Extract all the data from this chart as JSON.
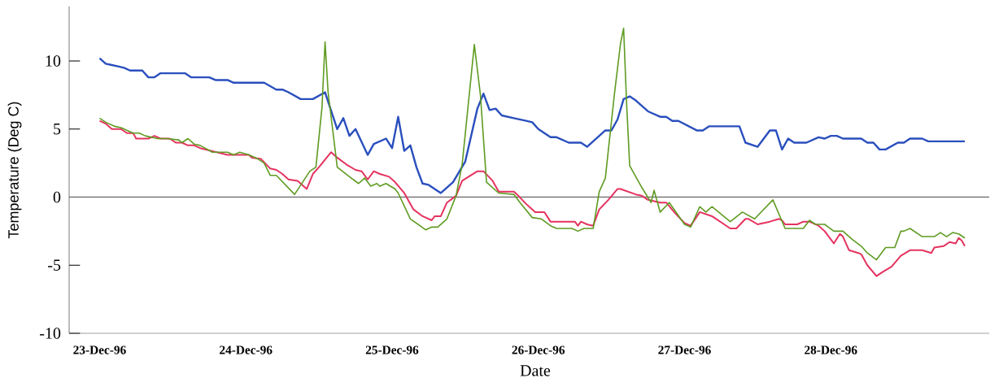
{
  "chart_data": {
    "type": "line",
    "xlabel": "Date",
    "ylabel": "Temperature (Deg C)",
    "xlim": [
      "1996-12-22T19:00",
      "1996-12-29T02:00"
    ],
    "ylim": [
      -10,
      14
    ],
    "xticks": [
      {
        "value": "1996-12-23",
        "label": "23-Dec-96"
      },
      {
        "value": "1996-12-24",
        "label": "24-Dec-96"
      },
      {
        "value": "1996-12-25",
        "label": "25-Dec-96"
      },
      {
        "value": "1996-12-26",
        "label": "26-Dec-96"
      },
      {
        "value": "1996-12-27",
        "label": "27-Dec-96"
      },
      {
        "value": "1996-12-28",
        "label": "28-Dec-96"
      }
    ],
    "yticks": [
      -10,
      -5,
      0,
      5,
      10
    ],
    "ref_lines": [
      {
        "axis": "y",
        "value": 0,
        "color": "#707070"
      }
    ],
    "series": [
      {
        "color": "#2a4fbd",
        "x": [
          "1996-12-23T00:00",
          "1996-12-23T01:00",
          "1996-12-23T02:00",
          "1996-12-23T03:00",
          "1996-12-23T04:00",
          "1996-12-23T05:00",
          "1996-12-23T07:00",
          "1996-12-23T08:00",
          "1996-12-23T09:00",
          "1996-12-23T10:00",
          "1996-12-23T14:00",
          "1996-12-23T15:00",
          "1996-12-23T18:00",
          "1996-12-23T19:00",
          "1996-12-23T21:00",
          "1996-12-23T22:00",
          "1996-12-24T03:00",
          "1996-12-24T05:00",
          "1996-12-24T06:00",
          "1996-12-24T07:00",
          "1996-12-24T09:00",
          "1996-12-24T11:00",
          "1996-12-24T13:00",
          "1996-12-24T15:00",
          "1996-12-24T16:00",
          "1996-12-24T17:00",
          "1996-12-24T18:00",
          "1996-12-24T20:00",
          "1996-12-24T21:00",
          "1996-12-24T23:00",
          "1996-12-25T00:00",
          "1996-12-25T01:00",
          "1996-12-25T02:00",
          "1996-12-25T03:00",
          "1996-12-25T04:00",
          "1996-12-25T05:00",
          "1996-12-25T06:00",
          "1996-12-25T08:00",
          "1996-12-25T10:00",
          "1996-12-25T12:00",
          "1996-12-25T14:00",
          "1996-12-25T15:00",
          "1996-12-25T16:00",
          "1996-12-25T17:00",
          "1996-12-25T18:00",
          "1996-12-25T20:00",
          "1996-12-25T22:00",
          "1996-12-25T23:00",
          "1996-12-26T00:00",
          "1996-12-26T02:00",
          "1996-12-26T03:00",
          "1996-12-26T05:00",
          "1996-12-26T07:00",
          "1996-12-26T08:00",
          "1996-12-26T09:00",
          "1996-12-26T11:00",
          "1996-12-26T12:00",
          "1996-12-26T13:00",
          "1996-12-26T14:00",
          "1996-12-26T15:00",
          "1996-12-26T16:00",
          "1996-12-26T18:00",
          "1996-12-26T20:00",
          "1996-12-26T21:00",
          "1996-12-26T22:00",
          "1996-12-26T23:00",
          "1996-12-27T02:00",
          "1996-12-27T03:00",
          "1996-12-27T04:00",
          "1996-12-27T09:00",
          "1996-12-27T10:00",
          "1996-12-27T12:00",
          "1996-12-27T14:00",
          "1996-12-27T15:00",
          "1996-12-27T16:00",
          "1996-12-27T17:00",
          "1996-12-27T18:00",
          "1996-12-27T20:00",
          "1996-12-27T22:00",
          "1996-12-27T23:00",
          "1996-12-28T00:00",
          "1996-12-28T01:00",
          "1996-12-28T02:00",
          "1996-12-28T05:00",
          "1996-12-28T06:00",
          "1996-12-28T07:00",
          "1996-12-28T08:00",
          "1996-12-28T09:00",
          "1996-12-28T11:00",
          "1996-12-28T12:00",
          "1996-12-28T13:00",
          "1996-12-28T15:00",
          "1996-12-28T16:00",
          "1996-12-28T22:00"
        ],
        "values": [
          10.2,
          9.8,
          9.7,
          9.6,
          9.5,
          9.3,
          9.3,
          8.8,
          8.8,
          9.1,
          9.1,
          8.8,
          8.8,
          8.6,
          8.6,
          8.4,
          8.4,
          7.9,
          7.9,
          7.7,
          7.2,
          7.2,
          7.7,
          5.0,
          5.8,
          4.5,
          5.0,
          3.1,
          3.9,
          4.3,
          3.6,
          5.9,
          3.4,
          3.8,
          2.2,
          1.0,
          0.9,
          0.3,
          1.1,
          2.6,
          6.5,
          7.6,
          6.4,
          6.5,
          6.0,
          5.8,
          5.6,
          5.5,
          5.0,
          4.4,
          4.4,
          4.0,
          4.0,
          3.7,
          4.1,
          4.9,
          4.9,
          5.7,
          7.2,
          7.4,
          7.1,
          6.3,
          5.9,
          5.9,
          5.6,
          5.6,
          4.9,
          4.9,
          5.2,
          5.2,
          4.0,
          3.7,
          4.9,
          4.9,
          3.5,
          4.3,
          4.0,
          4.0,
          4.4,
          4.3,
          4.5,
          4.5,
          4.3,
          4.3,
          4.0,
          4.0,
          3.5,
          3.5,
          4.0,
          4.0,
          4.3,
          4.3,
          4.1,
          4.1
        ]
      },
      {
        "color": "#e4335f",
        "x": [
          "1996-12-23T00:00",
          "1996-12-23T01:00",
          "1996-12-23T02:00",
          "1996-12-23T03:30",
          "1996-12-23T04:30",
          "1996-12-23T05:30",
          "1996-12-23T06:00",
          "1996-12-23T08:00",
          "1996-12-23T09:00",
          "1996-12-23T10:00",
          "1996-12-23T11:30",
          "1996-12-23T12:30",
          "1996-12-23T13:30",
          "1996-12-23T14:30",
          "1996-12-23T15:30",
          "1996-12-23T16:30",
          "1996-12-23T21:00",
          "1996-12-24T00:30",
          "1996-12-24T01:00",
          "1996-12-24T02:30",
          "1996-12-24T04:00",
          "1996-12-24T05:00",
          "1996-12-24T06:00",
          "1996-12-24T07:00",
          "1996-12-24T08:30",
          "1996-12-24T10:00",
          "1996-12-24T11:00",
          "1996-12-24T12:00",
          "1996-12-24T14:00",
          "1996-12-24T15:00",
          "1996-12-24T16:30",
          "1996-12-24T18:00",
          "1996-12-24T19:00",
          "1996-12-24T20:00",
          "1996-12-24T21:00",
          "1996-12-24T22:00",
          "1996-12-24T23:30",
          "1996-12-25T00:30",
          "1996-12-25T02:00",
          "1996-12-25T03:30",
          "1996-12-25T05:00",
          "1996-12-25T06:30",
          "1996-12-25T07:00",
          "1996-12-25T08:00",
          "1996-12-25T09:00",
          "1996-12-25T10:30",
          "1996-12-25T11:30",
          "1996-12-25T14:00",
          "1996-12-25T15:00",
          "1996-12-25T16:30",
          "1996-12-25T17:30",
          "1996-12-25T20:00",
          "1996-12-25T20:30",
          "1996-12-25T22:00",
          "1996-12-25T23:30",
          "1996-12-26T01:00",
          "1996-12-26T02:00",
          "1996-12-26T06:00",
          "1996-12-26T06:30",
          "1996-12-26T07:00",
          "1996-12-26T08:00",
          "1996-12-26T09:00",
          "1996-12-26T10:00",
          "1996-12-26T11:30",
          "1996-12-26T13:00",
          "1996-12-26T13:30",
          "1996-12-26T16:00",
          "1996-12-26T17:00",
          "1996-12-26T18:00",
          "1996-12-26T20:00",
          "1996-12-26T21:00",
          "1996-12-26T22:30",
          "1996-12-27T00:00",
          "1996-12-27T01:00",
          "1996-12-27T02:30",
          "1996-12-27T04:30",
          "1996-12-27T07:30",
          "1996-12-27T08:30",
          "1996-12-27T10:00",
          "1996-12-27T10:30",
          "1996-12-27T12:00",
          "1996-12-27T14:00",
          "1996-12-27T15:30",
          "1996-12-27T16:00",
          "1996-12-27T16:30",
          "1996-12-27T18:30",
          "1996-12-27T19:30",
          "1996-12-27T20:30",
          "1996-12-27T22:00",
          "1996-12-27T23:00",
          "1996-12-28T00:30",
          "1996-12-28T01:30",
          "1996-12-28T02:00",
          "1996-12-28T03:00",
          "1996-12-28T04:30",
          "1996-12-28T05:00",
          "1996-12-28T06:00",
          "1996-12-28T07:30",
          "1996-12-28T08:30",
          "1996-12-28T10:00",
          "1996-12-28T11:30",
          "1996-12-28T13:00",
          "1996-12-28T15:00",
          "1996-12-28T16:30",
          "1996-12-28T17:00",
          "1996-12-28T18:30",
          "1996-12-28T19:30",
          "1996-12-28T20:30",
          "1996-12-28T21:00",
          "1996-12-28T21:30",
          "1996-12-28T22:00"
        ],
        "values": [
          5.6,
          5.4,
          5.0,
          5.0,
          4.7,
          4.7,
          4.3,
          4.3,
          4.5,
          4.3,
          4.3,
          4.0,
          4.0,
          3.8,
          3.8,
          3.6,
          3.1,
          3.1,
          2.9,
          2.8,
          2.1,
          2.0,
          1.7,
          1.3,
          1.2,
          0.6,
          1.7,
          2.2,
          3.3,
          2.9,
          2.4,
          2.0,
          1.9,
          1.3,
          1.9,
          1.7,
          1.5,
          1.1,
          0.3,
          -0.9,
          -1.4,
          -1.7,
          -1.4,
          -1.4,
          -0.4,
          0.1,
          1.2,
          1.9,
          1.9,
          1.2,
          0.4,
          0.4,
          0.2,
          -0.5,
          -1.1,
          -1.1,
          -1.8,
          -1.8,
          -2.1,
          -1.8,
          -2.0,
          -2.1,
          -0.9,
          -0.2,
          0.6,
          0.6,
          0.2,
          0.1,
          -0.2,
          -0.4,
          -0.4,
          -1.2,
          -1.9,
          -2.1,
          -1.1,
          -1.4,
          -2.3,
          -2.3,
          -1.6,
          -1.6,
          -2.0,
          -1.8,
          -1.6,
          -1.7,
          -2.0,
          -2.0,
          -1.8,
          -1.8,
          -2.1,
          -2.5,
          -3.4,
          -2.7,
          -2.9,
          -3.9,
          -4.1,
          -4.2,
          -5.0,
          -5.8,
          -5.5,
          -5.1,
          -4.3,
          -3.9,
          -3.9,
          -4.1,
          -3.7,
          -3.6,
          -3.3,
          -3.4,
          -3.0,
          -3.2,
          -3.6
        ]
      },
      {
        "color": "#5f9b22",
        "x": [
          "1996-12-23T00:00",
          "1996-12-23T01:00",
          "1996-12-23T02:30",
          "1996-12-23T03:30",
          "1996-12-23T04:30",
          "1996-12-23T05:30",
          "1996-12-23T06:30",
          "1996-12-23T07:30",
          "1996-12-23T09:30",
          "1996-12-23T11:00",
          "1996-12-23T13:00",
          "1996-12-23T13:30",
          "1996-12-23T14:30",
          "1996-12-23T15:30",
          "1996-12-23T16:30",
          "1996-12-23T18:30",
          "1996-12-23T21:00",
          "1996-12-23T22:00",
          "1996-12-23T23:00",
          "1996-12-24T00:30",
          "1996-12-24T02:00",
          "1996-12-24T03:00",
          "1996-12-24T04:00",
          "1996-12-24T05:00",
          "1996-12-24T06:30",
          "1996-12-24T08:00",
          "1996-12-24T10:30",
          "1996-12-24T11:30",
          "1996-12-24T12:30",
          "1996-12-24T13:00",
          "1996-12-24T13:30",
          "1996-12-24T15:00",
          "1996-12-24T17:00",
          "1996-12-24T18:30",
          "1996-12-24T19:30",
          "1996-12-24T20:30",
          "1996-12-24T21:30",
          "1996-12-24T22:00",
          "1996-12-24T23:00",
          "1996-12-25T00:30",
          "1996-12-25T01:00",
          "1996-12-25T03:00",
          "1996-12-25T05:30",
          "1996-12-25T06:30",
          "1996-12-25T07:30",
          "1996-12-25T09:00",
          "1996-12-25T10:30",
          "1996-12-25T11:30",
          "1996-12-25T13:30",
          "1996-12-25T14:30",
          "1996-12-25T15:30",
          "1996-12-25T17:30",
          "1996-12-25T20:00",
          "1996-12-25T21:00",
          "1996-12-25T23:00",
          "1996-12-26T00:30",
          "1996-12-26T02:00",
          "1996-12-26T03:00",
          "1996-12-26T05:30",
          "1996-12-26T06:30",
          "1996-12-26T07:30",
          "1996-12-26T09:00",
          "1996-12-26T10:00",
          "1996-12-26T11:00",
          "1996-12-26T12:30",
          "1996-12-26T13:30",
          "1996-12-26T14:00",
          "1996-12-26T14:30",
          "1996-12-26T15:00",
          "1996-12-26T16:00",
          "1996-12-26T17:00",
          "1996-12-26T18:30",
          "1996-12-26T19:00",
          "1996-12-26T20:00",
          "1996-12-26T21:30",
          "1996-12-27T00:00",
          "1996-12-27T01:00",
          "1996-12-27T02:30",
          "1996-12-27T03:30",
          "1996-12-27T04:30",
          "1996-12-27T07:30",
          "1996-12-27T09:30",
          "1996-12-27T11:30",
          "1996-12-27T14:30",
          "1996-12-27T16:30",
          "1996-12-27T19:30",
          "1996-12-27T20:30",
          "1996-12-27T21:30",
          "1996-12-27T23:00",
          "1996-12-28T00:30",
          "1996-12-28T02:00",
          "1996-12-28T03:30",
          "1996-12-28T05:00",
          "1996-12-28T06:00",
          "1996-12-28T07:30",
          "1996-12-28T09:00",
          "1996-12-28T10:30",
          "1996-12-28T11:30",
          "1996-12-28T12:00",
          "1996-12-28T13:00",
          "1996-12-28T15:00",
          "1996-12-28T17:00",
          "1996-12-28T18:00",
          "1996-12-28T19:00",
          "1996-12-28T20:00",
          "1996-12-28T21:00",
          "1996-12-28T22:00"
        ],
        "values": [
          5.8,
          5.5,
          5.2,
          5.1,
          4.9,
          4.7,
          4.7,
          4.5,
          4.3,
          4.3,
          4.2,
          4.0,
          4.3,
          3.9,
          3.8,
          3.3,
          3.3,
          3.1,
          3.3,
          3.1,
          2.8,
          2.5,
          1.6,
          1.6,
          0.9,
          0.2,
          1.9,
          2.2,
          6.6,
          11.4,
          7.7,
          2.2,
          1.5,
          1.0,
          1.4,
          0.8,
          1.0,
          0.8,
          1.0,
          0.6,
          0.3,
          -1.6,
          -2.4,
          -2.2,
          -2.2,
          -1.6,
          0.1,
          2.4,
          11.2,
          7.5,
          1.1,
          0.3,
          0.2,
          -0.4,
          -1.5,
          -1.6,
          -2.1,
          -2.3,
          -2.3,
          -2.5,
          -2.3,
          -2.3,
          0.4,
          1.4,
          7.6,
          11.3,
          12.4,
          6.8,
          2.3,
          1.5,
          0.7,
          -0.4,
          0.5,
          -1.1,
          -0.4,
          -2.0,
          -2.2,
          -0.7,
          -1.1,
          -0.7,
          -1.8,
          -1.1,
          -1.6,
          -0.2,
          -2.3,
          -2.3,
          -1.7,
          -2.0,
          -2.0,
          -2.5,
          -2.5,
          -3.1,
          -3.6,
          -4.1,
          -4.6,
          -3.7,
          -3.7,
          -2.5,
          -2.5,
          -2.3,
          -2.9,
          -2.9,
          -2.6,
          -2.9,
          -2.6,
          -2.7,
          -3.0
        ]
      }
    ]
  }
}
